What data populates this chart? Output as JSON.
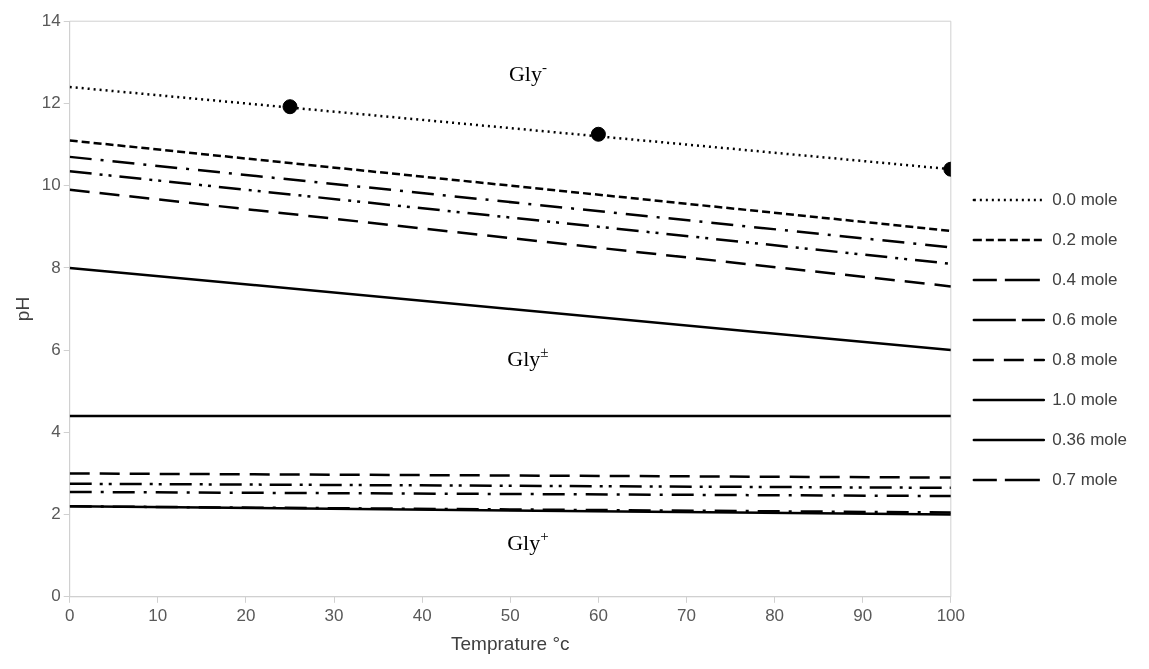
{
  "chart_data": {
    "type": "line",
    "xlabel": "Temprature °c",
    "ylabel": "pH",
    "xlim": [
      0,
      100
    ],
    "xticks": [
      0,
      10,
      20,
      30,
      40,
      50,
      60,
      70,
      80,
      90,
      100
    ],
    "ylim": [
      0,
      14
    ],
    "yticks": [
      0,
      2,
      4,
      6,
      8,
      10,
      12,
      14
    ],
    "grid": false,
    "legend": "right",
    "series": [
      {
        "name": "0.0 mole",
        "color": "#000000",
        "line_style": "dotted",
        "x": [
          0,
          100
        ],
        "values": [
          12.4,
          10.4
        ]
      },
      {
        "name": "0.2 mole",
        "color": "#000000",
        "line_style": "dashed",
        "x": [
          0,
          100
        ],
        "values": [
          11.1,
          8.9
        ]
      },
      {
        "name": "0.4 mole",
        "color": "#000000",
        "line_style": "dashdot",
        "x": [
          0,
          100
        ],
        "values": [
          10.7,
          8.5
        ]
      },
      {
        "name": "0.6 mole",
        "color": "#000000",
        "line_style": "dashdotdot",
        "x": [
          0,
          100
        ],
        "values": [
          10.35,
          8.1
        ]
      },
      {
        "name": "0.8 mole",
        "color": "#000000",
        "line_style": "longdash",
        "x": [
          0,
          100
        ],
        "values": [
          9.9,
          7.55
        ]
      },
      {
        "name": "1.0 mole",
        "color": "#000000",
        "line_style": "solid",
        "x": [
          0,
          100
        ],
        "values": [
          8.0,
          6.0
        ]
      },
      {
        "name": "0.36 mole",
        "color": "#000000",
        "line_style": "solid",
        "x": [
          0,
          100
        ],
        "values": [
          2.2,
          2.0
        ]
      },
      {
        "name": "0.7 mole",
        "color": "#000000",
        "line_style": "dashdot",
        "x": [
          0,
          100
        ],
        "values": [
          2.2,
          2.05
        ]
      },
      {
        "color": "#000000",
        "line_style": "solid",
        "x": [
          0,
          100
        ],
        "values": [
          4.4,
          4.4
        ]
      },
      {
        "color": "#000000",
        "line_style": "longdash",
        "x": [
          0,
          100
        ],
        "values": [
          3.0,
          2.9
        ]
      },
      {
        "color": "#000000",
        "line_style": "dashdotdot",
        "x": [
          0,
          100
        ],
        "values": [
          2.75,
          2.65
        ]
      },
      {
        "color": "#000000",
        "line_style": "dashdot",
        "x": [
          0,
          100
        ],
        "values": [
          2.55,
          2.45
        ]
      },
      {
        "type": "scatter",
        "color": "#000000",
        "marker": "circle",
        "x": [
          25,
          60,
          100
        ],
        "values": [
          11.92,
          11.25,
          10.4
        ]
      }
    ],
    "annotations": [
      "Gly$^{-}$",
      "Gly$^{±}$",
      "Gly$^{+}$"
    ]
  }
}
